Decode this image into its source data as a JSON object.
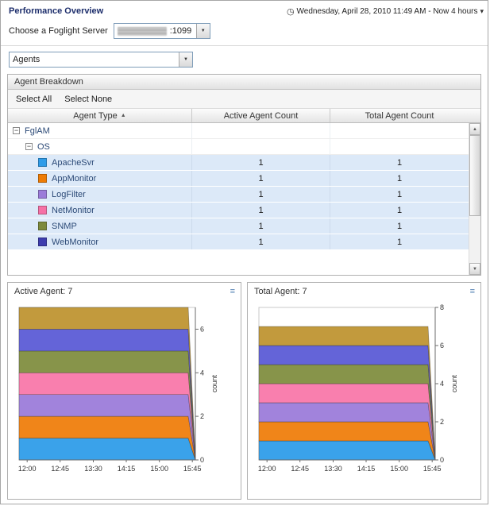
{
  "page": {
    "title": "Performance Overview"
  },
  "time_range": {
    "label": "Wednesday, April 28, 2010 11:49 AM - Now 4 hours"
  },
  "server_select": {
    "label": "Choose a Foglight Server",
    "port_suffix": ":1099"
  },
  "view_select": {
    "value": "Agents"
  },
  "agent_breakdown": {
    "title": "Agent Breakdown",
    "select_all": "Select All",
    "select_none": "Select None",
    "columns": {
      "agent_type": "Agent Type",
      "active": "Active Agent Count",
      "total": "Total Agent Count"
    },
    "tree": {
      "root": "FglAM",
      "child": "OS"
    },
    "rows": [
      {
        "name": "ApacheSvr",
        "color": "#2f9ce8",
        "active": "1",
        "total": "1"
      },
      {
        "name": "AppMonitor",
        "color": "#ee7c05",
        "active": "1",
        "total": "1"
      },
      {
        "name": "LogFilter",
        "color": "#9b7bd9",
        "active": "1",
        "total": "1"
      },
      {
        "name": "NetMonitor",
        "color": "#f671a6",
        "active": "1",
        "total": "1"
      },
      {
        "name": "SNMP",
        "color": "#7d8a3c",
        "active": "1",
        "total": "1"
      },
      {
        "name": "WebMonitor",
        "color": "#3d3dae",
        "active": "1",
        "total": "1"
      }
    ]
  },
  "icons": {
    "clock": "◷",
    "caret_down": "▾",
    "combo_arrow": "▼",
    "sort_asc": "▲",
    "collapse": "−",
    "customizer": "≡",
    "scroll_up": "▲",
    "scroll_down": "▼"
  },
  "chart_data": [
    {
      "type": "area",
      "stacked": true,
      "title": "Active Agent: 7",
      "x": [
        "12:00",
        "12:45",
        "13:30",
        "14:15",
        "15:00",
        "15:45"
      ],
      "series": [
        {
          "name": "ApacheSvr",
          "color": "#3aa2ea",
          "values": [
            1,
            1,
            1,
            1,
            1,
            1
          ]
        },
        {
          "name": "AppMonitor",
          "color": "#f08519",
          "values": [
            1,
            1,
            1,
            1,
            1,
            1
          ]
        },
        {
          "name": "LogFilter",
          "color": "#a183dc",
          "values": [
            1,
            1,
            1,
            1,
            1,
            1
          ]
        },
        {
          "name": "NetMonitor",
          "color": "#f97fae",
          "values": [
            1,
            1,
            1,
            1,
            1,
            1
          ]
        },
        {
          "name": "SNMP",
          "color": "#87944a",
          "values": [
            1,
            1,
            1,
            1,
            1,
            1
          ]
        },
        {
          "name": "WebMonitor",
          "color": "#6464d8",
          "values": [
            1,
            1,
            1,
            1,
            1,
            1
          ]
        },
        {
          "name": "FglAM",
          "color": "#c29a3d",
          "values": [
            1,
            1,
            1,
            1,
            1,
            1
          ]
        }
      ],
      "ylabel": "count",
      "ylim": [
        0,
        7
      ],
      "yticks": [
        0,
        2,
        4,
        6
      ],
      "legend": false
    },
    {
      "type": "area",
      "stacked": true,
      "title": "Total Agent: 7",
      "x": [
        "12:00",
        "12:45",
        "13:30",
        "14:15",
        "15:00",
        "15:45"
      ],
      "series": [
        {
          "name": "ApacheSvr",
          "color": "#3aa2ea",
          "values": [
            1,
            1,
            1,
            1,
            1,
            1
          ]
        },
        {
          "name": "AppMonitor",
          "color": "#f08519",
          "values": [
            1,
            1,
            1,
            1,
            1,
            1
          ]
        },
        {
          "name": "LogFilter",
          "color": "#a183dc",
          "values": [
            1,
            1,
            1,
            1,
            1,
            1
          ]
        },
        {
          "name": "NetMonitor",
          "color": "#f97fae",
          "values": [
            1,
            1,
            1,
            1,
            1,
            1
          ]
        },
        {
          "name": "SNMP",
          "color": "#87944a",
          "values": [
            1,
            1,
            1,
            1,
            1,
            1
          ]
        },
        {
          "name": "WebMonitor",
          "color": "#6464d8",
          "values": [
            1,
            1,
            1,
            1,
            1,
            1
          ]
        },
        {
          "name": "FglAM",
          "color": "#c29a3d",
          "values": [
            1,
            1,
            1,
            1,
            1,
            1
          ]
        }
      ],
      "ylabel": "count",
      "ylim": [
        0,
        8
      ],
      "yticks": [
        0,
        2,
        4,
        6,
        8
      ],
      "legend": false
    }
  ]
}
